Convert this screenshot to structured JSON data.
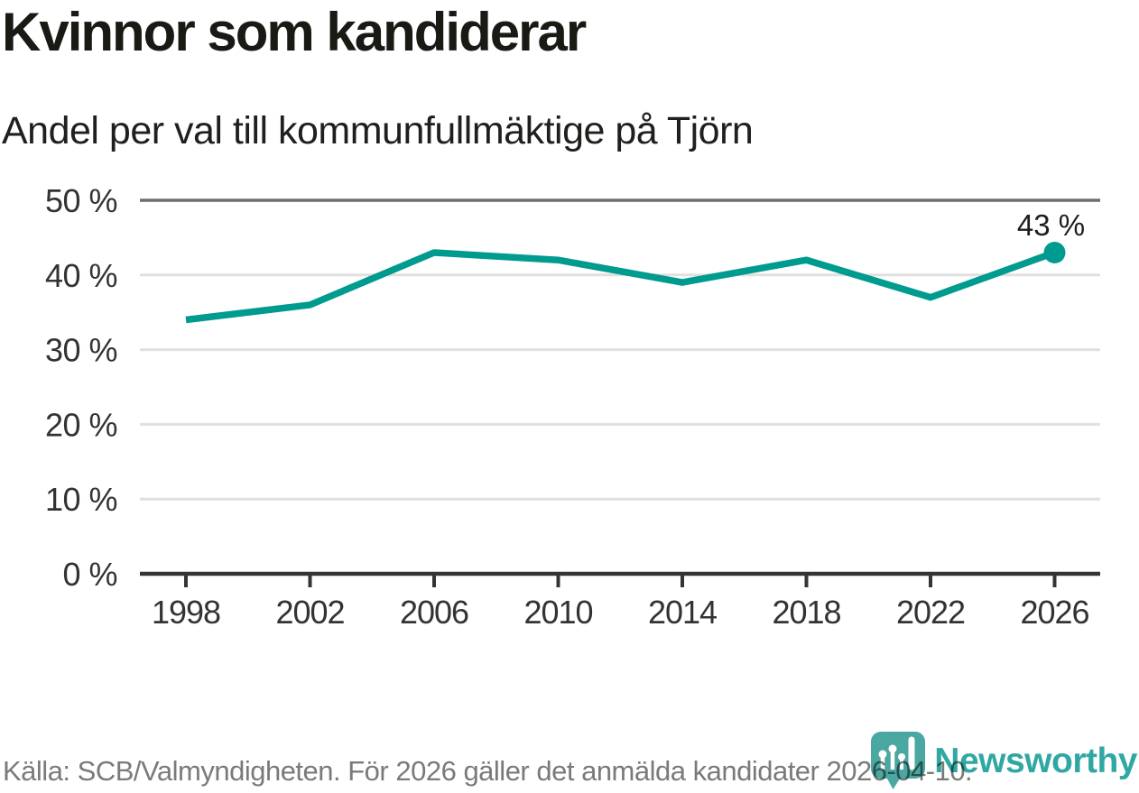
{
  "header": {
    "title": "Kvinnor som kandiderar",
    "subtitle": "Andel per val till kommunfullmäktige på Tjörn"
  },
  "chart_data": {
    "type": "line",
    "title": "Kvinnor som kandiderar",
    "subtitle": "Andel per val till kommunfullmäktige på Tjörn",
    "categories": [
      1998,
      2002,
      2006,
      2010,
      2014,
      2018,
      2022,
      2026
    ],
    "values": [
      34,
      36,
      43,
      42,
      39,
      42,
      37,
      43
    ],
    "unit": "%",
    "ylim": [
      0,
      50
    ],
    "y_ticks": [
      0,
      10,
      20,
      30,
      40,
      50
    ],
    "y_tick_labels": [
      "0 %",
      "10 %",
      "20 %",
      "30 %",
      "40 %",
      "50 %"
    ],
    "x_tick_labels": [
      "1998",
      "2002",
      "2006",
      "2010",
      "2014",
      "2018",
      "2022",
      "2026"
    ],
    "grid": "horizontal",
    "legend": "none",
    "end_point_label": "43 %"
  },
  "footer": {
    "source_note": "Källa: SCB/Valmyndigheten. För 2026 gäller det anmälda kandidater 2026-04-10."
  },
  "logo": {
    "wordmark": "Newsworthy",
    "icon": "newsworthy-pin-bar-chart-icon"
  },
  "colors": {
    "line": "#009b8f",
    "end_marker": "#009b8f",
    "grid_light": "#e0e0e0",
    "grid_top": "#6e6e72",
    "axis": "#343434",
    "tick_label": "#333333",
    "value_label": "#1d1d1d",
    "title": "#1a1a14",
    "source_text": "#7a7a7a",
    "logo_icon": "#4ba7a1",
    "logo_wordmark": "#2fa8a3"
  }
}
